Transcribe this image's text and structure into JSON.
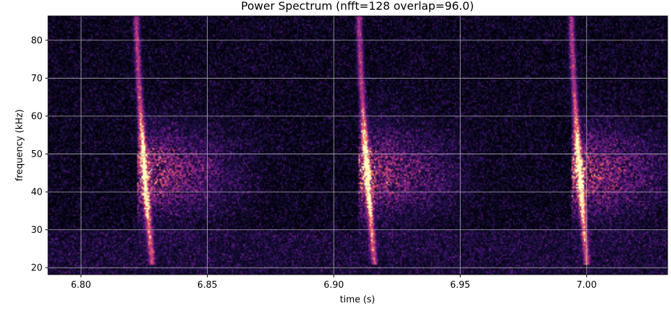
{
  "chart_data": {
    "type": "heatmap",
    "title": "Power Spectrum (nfft=128 overlap=96.0)",
    "xlabel": "time (s)",
    "ylabel": "frequency (kHz)",
    "xlim": [
      6.787,
      7.032
    ],
    "ylim": [
      18.2,
      86.4
    ],
    "xticks": [
      "6.80",
      "6.85",
      "6.90",
      "6.95",
      "7.00"
    ],
    "xtick_values": [
      6.8,
      6.85,
      6.9,
      6.95,
      7.0
    ],
    "yticks": [
      "20",
      "30",
      "40",
      "50",
      "60",
      "70",
      "80"
    ],
    "ytick_values": [
      20,
      30,
      40,
      50,
      60,
      70,
      80
    ],
    "grid": true,
    "colormap": "magma",
    "calls": [
      {
        "onset_s": 6.822,
        "sweep_end_s": 6.828,
        "f_start_khz": 86,
        "f_end_khz": 22,
        "tail_end_s": 6.875
      },
      {
        "onset_s": 6.91,
        "sweep_end_s": 6.916,
        "f_start_khz": 86,
        "f_end_khz": 22,
        "tail_end_s": 6.96
      },
      {
        "onset_s": 6.994,
        "sweep_end_s": 7.0,
        "f_start_khz": 86,
        "f_end_khz": 22,
        "tail_end_s": 7.045
      }
    ]
  }
}
